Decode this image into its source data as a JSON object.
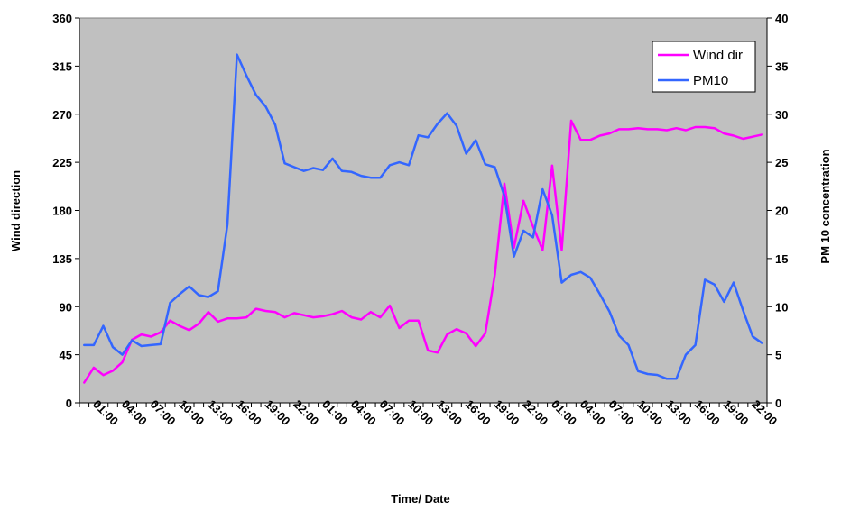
{
  "chart_data": {
    "type": "line",
    "xlabel": "Time/ Date",
    "ylabel": "Wind direction",
    "y2label": "PM 10 concentration",
    "ylim": [
      0,
      360
    ],
    "y2lim": [
      0,
      40
    ],
    "yticks": [
      0,
      45,
      90,
      135,
      180,
      225,
      270,
      315,
      360
    ],
    "y2ticks": [
      0,
      5,
      10,
      15,
      20,
      25,
      30,
      35,
      40
    ],
    "grid": false,
    "plot_background": "#c0c0c0",
    "legend_position": "top-right",
    "x_tick_labels": [
      "01:00",
      "04:00",
      "07:00",
      "10:00",
      "13:00",
      "16:00",
      "19:00",
      "22:00",
      "01:00",
      "04:00",
      "07:00",
      "10:00",
      "13:00",
      "16:00",
      "19:00",
      "22:00",
      "01:00",
      "04:00",
      "07:00",
      "10:00",
      "13:00",
      "16:00",
      "19:00",
      "22:00"
    ],
    "series": [
      {
        "name": "Wind dir",
        "axis": "left",
        "color": "#ff00ff",
        "values": [
          19,
          33,
          26,
          30,
          38,
          59,
          64,
          62,
          66,
          77,
          72,
          68,
          74,
          85,
          76,
          79,
          79,
          80,
          88,
          86,
          85,
          80,
          84,
          82,
          80,
          81,
          83,
          86,
          80,
          78,
          85,
          80,
          91,
          70,
          77,
          77,
          49,
          47,
          64,
          69,
          65,
          53,
          65,
          120,
          205,
          145,
          189,
          165,
          143,
          222,
          143,
          264,
          246,
          246,
          250,
          252,
          256,
          256,
          257,
          256,
          256,
          255,
          257,
          255,
          258,
          258,
          257,
          252,
          250,
          247,
          249,
          251
        ]
      },
      {
        "name": "PM10",
        "axis": "right",
        "color": "#3366ff",
        "values": [
          6,
          6,
          8,
          5.8,
          5,
          6.5,
          5.9,
          6,
          6.1,
          10.4,
          11.3,
          12.1,
          11.2,
          11,
          11.6,
          18.5,
          36.2,
          34,
          32,
          30.8,
          28.9,
          24.9,
          24.5,
          24.1,
          24.4,
          24.2,
          25.4,
          24.1,
          24,
          23.6,
          23.4,
          23.4,
          24.7,
          25,
          24.7,
          27.8,
          27.6,
          29,
          30.1,
          28.8,
          25.9,
          27.3,
          24.8,
          24.5,
          21.5,
          15.2,
          17.9,
          17.2,
          22.2,
          19.5,
          12.5,
          13.3,
          13.6,
          13,
          11.3,
          9.5,
          7,
          6,
          3.3,
          3,
          2.9,
          2.5,
          2.5,
          5,
          6,
          12.8,
          12.3,
          10.5,
          12.5,
          9.6,
          6.9,
          6.2
        ]
      }
    ]
  }
}
